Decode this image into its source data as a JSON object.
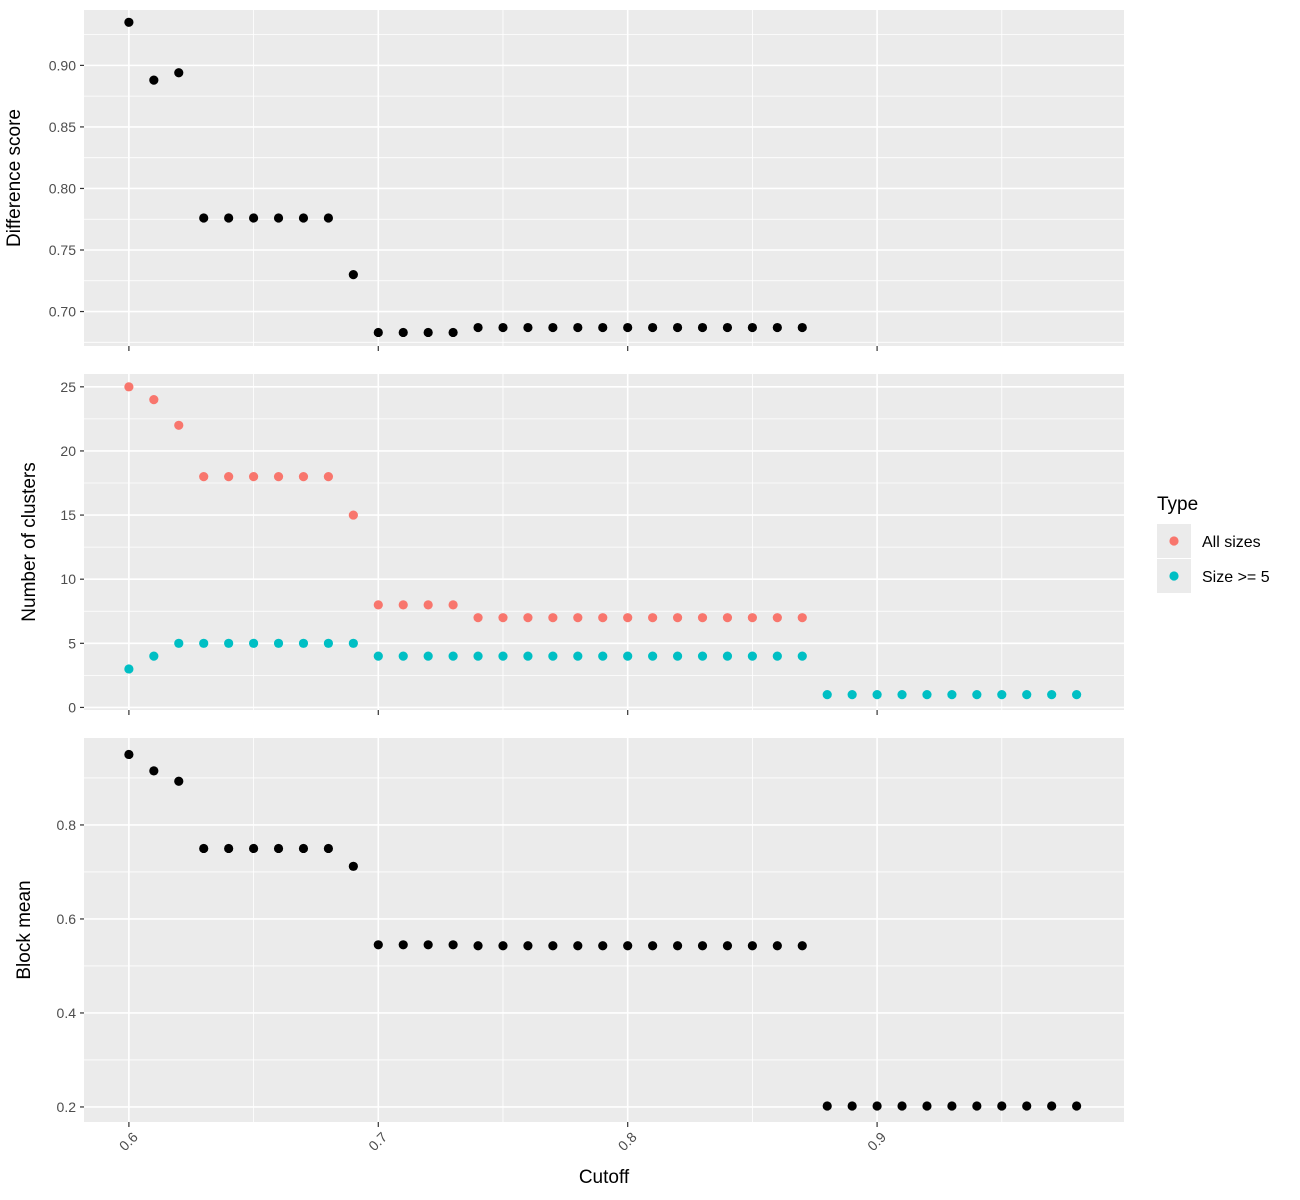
{
  "chart_data": [
    {
      "type": "scatter",
      "ylabel": "Difference score",
      "ylim": [
        0.672,
        0.945
      ],
      "yticks": [
        0.7,
        0.75,
        0.8,
        0.85,
        0.9
      ],
      "ytick_labels": [
        "0.70",
        "0.75",
        "0.80",
        "0.85",
        "0.90"
      ],
      "xlim": [
        0.582,
        0.999
      ],
      "grid": true,
      "series": [
        {
          "color": "#000000",
          "points": [
            [
              0.6,
              0.935
            ],
            [
              0.61,
              0.888
            ],
            [
              0.62,
              0.894
            ],
            [
              0.63,
              0.776
            ],
            [
              0.64,
              0.776
            ],
            [
              0.65,
              0.776
            ],
            [
              0.66,
              0.776
            ],
            [
              0.67,
              0.776
            ],
            [
              0.68,
              0.776
            ],
            [
              0.69,
              0.73
            ],
            [
              0.7,
              0.683
            ],
            [
              0.71,
              0.683
            ],
            [
              0.72,
              0.683
            ],
            [
              0.73,
              0.683
            ],
            [
              0.74,
              0.687
            ],
            [
              0.75,
              0.687
            ],
            [
              0.76,
              0.687
            ],
            [
              0.77,
              0.687
            ],
            [
              0.78,
              0.687
            ],
            [
              0.79,
              0.687
            ],
            [
              0.8,
              0.687
            ],
            [
              0.81,
              0.687
            ],
            [
              0.82,
              0.687
            ],
            [
              0.83,
              0.687
            ],
            [
              0.84,
              0.687
            ],
            [
              0.85,
              0.687
            ],
            [
              0.86,
              0.687
            ],
            [
              0.87,
              0.687
            ]
          ]
        }
      ]
    },
    {
      "type": "scatter",
      "ylabel": "Number of clusters",
      "ylim": [
        -0.2,
        26.0
      ],
      "yticks": [
        0,
        5,
        10,
        15,
        20,
        25
      ],
      "ytick_labels": [
        "0",
        "5",
        "10",
        "15",
        "20",
        "25"
      ],
      "xlim": [
        0.582,
        0.999
      ],
      "grid": true,
      "series": [
        {
          "name": "All sizes",
          "color": "#F8766D",
          "points": [
            [
              0.6,
              25
            ],
            [
              0.61,
              24
            ],
            [
              0.62,
              22
            ],
            [
              0.63,
              18
            ],
            [
              0.64,
              18
            ],
            [
              0.65,
              18
            ],
            [
              0.66,
              18
            ],
            [
              0.67,
              18
            ],
            [
              0.68,
              18
            ],
            [
              0.69,
              15
            ],
            [
              0.7,
              8
            ],
            [
              0.71,
              8
            ],
            [
              0.72,
              8
            ],
            [
              0.73,
              8
            ],
            [
              0.74,
              7
            ],
            [
              0.75,
              7
            ],
            [
              0.76,
              7
            ],
            [
              0.77,
              7
            ],
            [
              0.78,
              7
            ],
            [
              0.79,
              7
            ],
            [
              0.8,
              7
            ],
            [
              0.81,
              7
            ],
            [
              0.82,
              7
            ],
            [
              0.83,
              7
            ],
            [
              0.84,
              7
            ],
            [
              0.85,
              7
            ],
            [
              0.86,
              7
            ],
            [
              0.87,
              7
            ]
          ]
        },
        {
          "name": "Size >= 5",
          "color": "#00BFC4",
          "points": [
            [
              0.6,
              3
            ],
            [
              0.61,
              4
            ],
            [
              0.62,
              5
            ],
            [
              0.63,
              5
            ],
            [
              0.64,
              5
            ],
            [
              0.65,
              5
            ],
            [
              0.66,
              5
            ],
            [
              0.67,
              5
            ],
            [
              0.68,
              5
            ],
            [
              0.69,
              5
            ],
            [
              0.7,
              4
            ],
            [
              0.71,
              4
            ],
            [
              0.72,
              4
            ],
            [
              0.73,
              4
            ],
            [
              0.74,
              4
            ],
            [
              0.75,
              4
            ],
            [
              0.76,
              4
            ],
            [
              0.77,
              4
            ],
            [
              0.78,
              4
            ],
            [
              0.79,
              4
            ],
            [
              0.8,
              4
            ],
            [
              0.81,
              4
            ],
            [
              0.82,
              4
            ],
            [
              0.83,
              4
            ],
            [
              0.84,
              4
            ],
            [
              0.85,
              4
            ],
            [
              0.86,
              4
            ],
            [
              0.87,
              4
            ],
            [
              0.88,
              1
            ],
            [
              0.89,
              1
            ],
            [
              0.9,
              1
            ],
            [
              0.91,
              1
            ],
            [
              0.92,
              1
            ],
            [
              0.93,
              1
            ],
            [
              0.94,
              1
            ],
            [
              0.95,
              1
            ],
            [
              0.96,
              1
            ],
            [
              0.97,
              1
            ],
            [
              0.98,
              1
            ]
          ]
        }
      ]
    },
    {
      "type": "scatter",
      "ylabel": "Block mean",
      "ylim": [
        0.168,
        0.985
      ],
      "yticks": [
        0.2,
        0.4,
        0.6,
        0.8
      ],
      "ytick_labels": [
        "0.2",
        "0.4",
        "0.6",
        "0.8"
      ],
      "xlim": [
        0.582,
        0.999
      ],
      "grid": true,
      "series": [
        {
          "color": "#000000",
          "points": [
            [
              0.6,
              0.95
            ],
            [
              0.61,
              0.915
            ],
            [
              0.62,
              0.893
            ],
            [
              0.63,
              0.75
            ],
            [
              0.64,
              0.75
            ],
            [
              0.65,
              0.75
            ],
            [
              0.66,
              0.75
            ],
            [
              0.67,
              0.75
            ],
            [
              0.68,
              0.75
            ],
            [
              0.69,
              0.712
            ],
            [
              0.7,
              0.545
            ],
            [
              0.71,
              0.545
            ],
            [
              0.72,
              0.545
            ],
            [
              0.73,
              0.545
            ],
            [
              0.74,
              0.543
            ],
            [
              0.75,
              0.543
            ],
            [
              0.76,
              0.543
            ],
            [
              0.77,
              0.543
            ],
            [
              0.78,
              0.543
            ],
            [
              0.79,
              0.543
            ],
            [
              0.8,
              0.543
            ],
            [
              0.81,
              0.543
            ],
            [
              0.82,
              0.543
            ],
            [
              0.83,
              0.543
            ],
            [
              0.84,
              0.543
            ],
            [
              0.85,
              0.543
            ],
            [
              0.86,
              0.543
            ],
            [
              0.87,
              0.543
            ],
            [
              0.88,
              0.202
            ],
            [
              0.89,
              0.202
            ],
            [
              0.9,
              0.202
            ],
            [
              0.91,
              0.202
            ],
            [
              0.92,
              0.202
            ],
            [
              0.93,
              0.202
            ],
            [
              0.94,
              0.202
            ],
            [
              0.95,
              0.202
            ],
            [
              0.96,
              0.202
            ],
            [
              0.97,
              0.202
            ],
            [
              0.98,
              0.202
            ]
          ]
        }
      ]
    }
  ],
  "x_axis": {
    "label": "Cutoff",
    "ticks": [
      0.6,
      0.7,
      0.8,
      0.9
    ],
    "tick_labels": [
      "0.6",
      "0.7",
      "0.8",
      "0.9"
    ],
    "tick_label_rotation_deg": -45
  },
  "legend": {
    "title": "Type",
    "position": "right",
    "items": [
      {
        "label": "All sizes",
        "color": "#F8766D"
      },
      {
        "label": "Size >= 5",
        "color": "#00BFC4"
      }
    ]
  },
  "theme": {
    "panel_background": "#EBEBEB",
    "grid_color": "#FFFFFF",
    "tick_color": "#333333",
    "text_color": "#4D4D4D"
  }
}
